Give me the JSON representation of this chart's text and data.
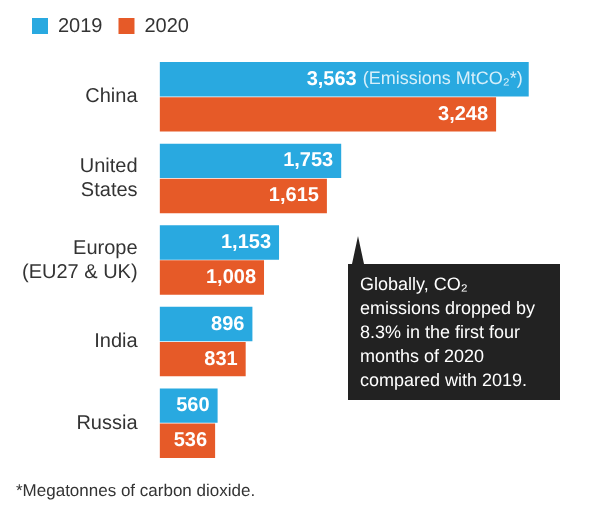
{
  "chart_data": {
    "type": "bar",
    "orientation": "horizontal",
    "categories": [
      "China",
      "United States",
      "Europe (EU27 & UK)",
      "India",
      "Russia"
    ],
    "series": [
      {
        "name": "2019",
        "color": "#29a9e0",
        "values": [
          3563,
          1753,
          1153,
          896,
          560
        ],
        "value_labels": [
          "3,563",
          "1,753",
          "1,153",
          "896",
          "560"
        ]
      },
      {
        "name": "2020",
        "color": "#e65a28",
        "values": [
          3248,
          1615,
          1008,
          831,
          536
        ],
        "value_labels": [
          "3,248",
          "1,615",
          "1,008",
          "831",
          "536"
        ]
      }
    ],
    "legend": "top left",
    "annotations": [
      {
        "text": "(Emissions MtCO₂*)",
        "x": 3563,
        "y": "China"
      },
      "Globally, CO₂ emissions dropped by 8.3% in the first four months of 2020 compared with 2019.",
      "*Megatonnes of carbon dioxide."
    ]
  }
}
